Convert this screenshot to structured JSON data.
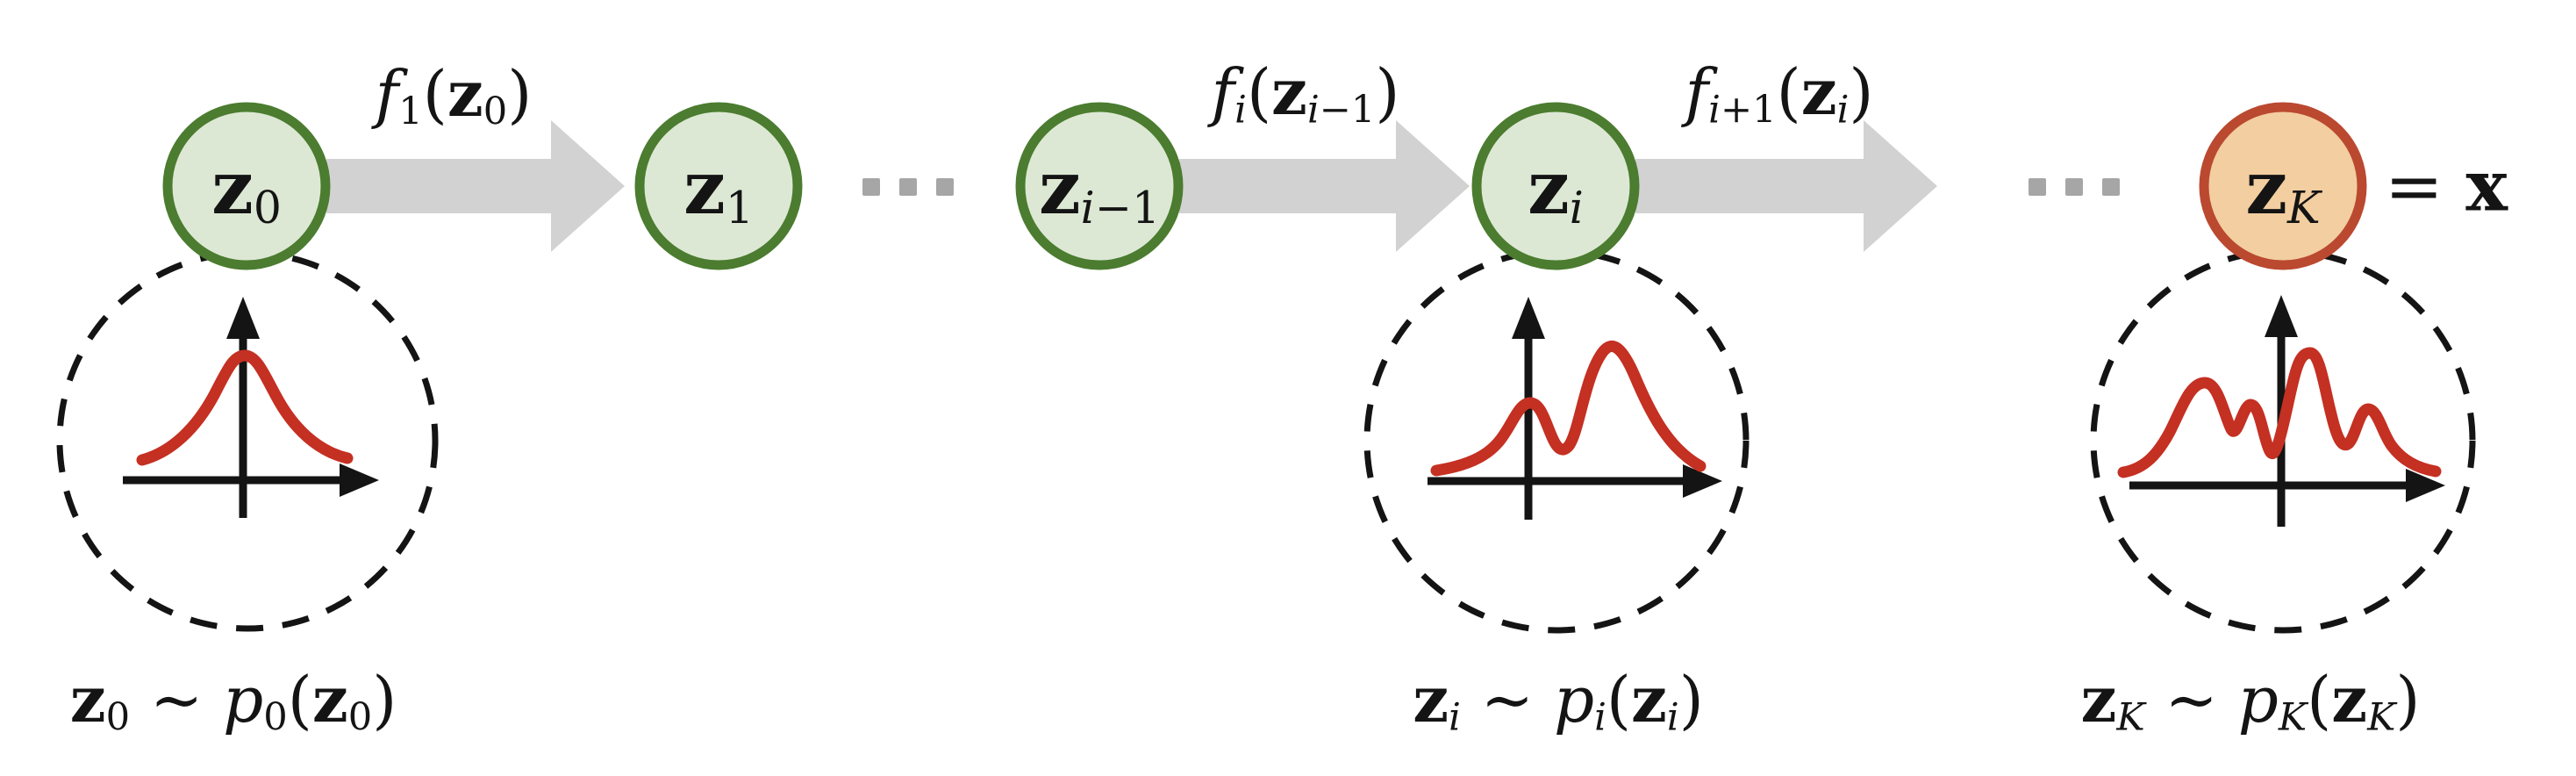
{
  "figure": "normalizing-flow-transformation-diagram",
  "colors": {
    "background": "#ffffff",
    "ink": "#141414",
    "green_fill": "#dde8d4",
    "green_border": "#4b7c30",
    "orange_fill": "#f2cea0",
    "orange_border": "#ba4930",
    "arrow_gray": "#d2d2d2",
    "dot_gray": "#a6a6a6",
    "curve_red": "#c43022"
  },
  "nodes": [
    {
      "id": "z0",
      "label": [
        {
          "t": "z",
          "st": "b"
        },
        {
          "t": "0",
          "sub": true
        }
      ]
    },
    {
      "id": "z1",
      "label": [
        {
          "t": "z",
          "st": "b"
        },
        {
          "t": "1",
          "sub": true
        }
      ]
    },
    {
      "id": "zi1",
      "label": [
        {
          "t": "z",
          "st": "b"
        },
        {
          "t": "i",
          "st": "i",
          "sub": true
        },
        {
          "t": "−1",
          "sub": true
        }
      ]
    },
    {
      "id": "zi",
      "label": [
        {
          "t": "z",
          "st": "b"
        },
        {
          "t": "i",
          "st": "i",
          "sub": true
        }
      ]
    },
    {
      "id": "zK",
      "label": [
        {
          "t": "z",
          "st": "b"
        },
        {
          "t": "K",
          "st": "i",
          "sub": true
        }
      ]
    }
  ],
  "arrows": [
    {
      "id": "f1",
      "label": [
        {
          "t": "f",
          "st": "i"
        },
        {
          "t": "1",
          "sub": true
        },
        {
          "t": "("
        },
        {
          "t": "z",
          "st": "b"
        },
        {
          "t": "0",
          "sub": true
        },
        {
          "t": ")"
        }
      ]
    },
    {
      "id": "fi",
      "label": [
        {
          "t": "f",
          "st": "i"
        },
        {
          "t": "i",
          "st": "i",
          "sub": true
        },
        {
          "t": "("
        },
        {
          "t": "z",
          "st": "b"
        },
        {
          "t": "i",
          "st": "i",
          "sub": true
        },
        {
          "t": "−1",
          "sub": true
        },
        {
          "t": ")"
        }
      ]
    },
    {
      "id": "fi1",
      "label": [
        {
          "t": "f",
          "st": "i"
        },
        {
          "t": "i",
          "st": "i",
          "sub": true
        },
        {
          "t": "+1",
          "sub": true
        },
        {
          "t": "("
        },
        {
          "t": "z",
          "st": "b"
        },
        {
          "t": "i",
          "st": "i",
          "sub": true
        },
        {
          "t": ")"
        }
      ]
    }
  ],
  "equals_x": [
    {
      "t": "= "
    },
    {
      "t": "x",
      "st": "b"
    }
  ],
  "ellipses": [
    {
      "id": "ellipsis-1",
      "meaning": "···"
    },
    {
      "id": "ellipsis-2",
      "meaning": "···"
    }
  ],
  "distributions": [
    {
      "id": "p0",
      "shape": "unimodal-gaussian",
      "label": [
        {
          "t": "z",
          "st": "b"
        },
        {
          "t": "0",
          "sub": true
        },
        {
          "t": " ∼ "
        },
        {
          "t": "p",
          "st": "i"
        },
        {
          "t": "0",
          "sub": true
        },
        {
          "t": "("
        },
        {
          "t": "z",
          "st": "b"
        },
        {
          "t": "0",
          "sub": true
        },
        {
          "t": ")"
        }
      ]
    },
    {
      "id": "pi",
      "shape": "bimodal",
      "label": [
        {
          "t": "z",
          "st": "b"
        },
        {
          "t": "i",
          "st": "i",
          "sub": true
        },
        {
          "t": " ∼ "
        },
        {
          "t": "p",
          "st": "i"
        },
        {
          "t": "i",
          "st": "i",
          "sub": true
        },
        {
          "t": "("
        },
        {
          "t": "z",
          "st": "b"
        },
        {
          "t": "i",
          "st": "i",
          "sub": true
        },
        {
          "t": ")"
        }
      ]
    },
    {
      "id": "pK",
      "shape": "multimodal",
      "label": [
        {
          "t": "z",
          "st": "b"
        },
        {
          "t": "K",
          "st": "i",
          "sub": true
        },
        {
          "t": " ∼ "
        },
        {
          "t": "p",
          "st": "i"
        },
        {
          "t": "K",
          "st": "i",
          "sub": true
        },
        {
          "t": "("
        },
        {
          "t": "z",
          "st": "b"
        },
        {
          "t": "K",
          "st": "i",
          "sub": true
        },
        {
          "t": ")"
        }
      ]
    }
  ]
}
